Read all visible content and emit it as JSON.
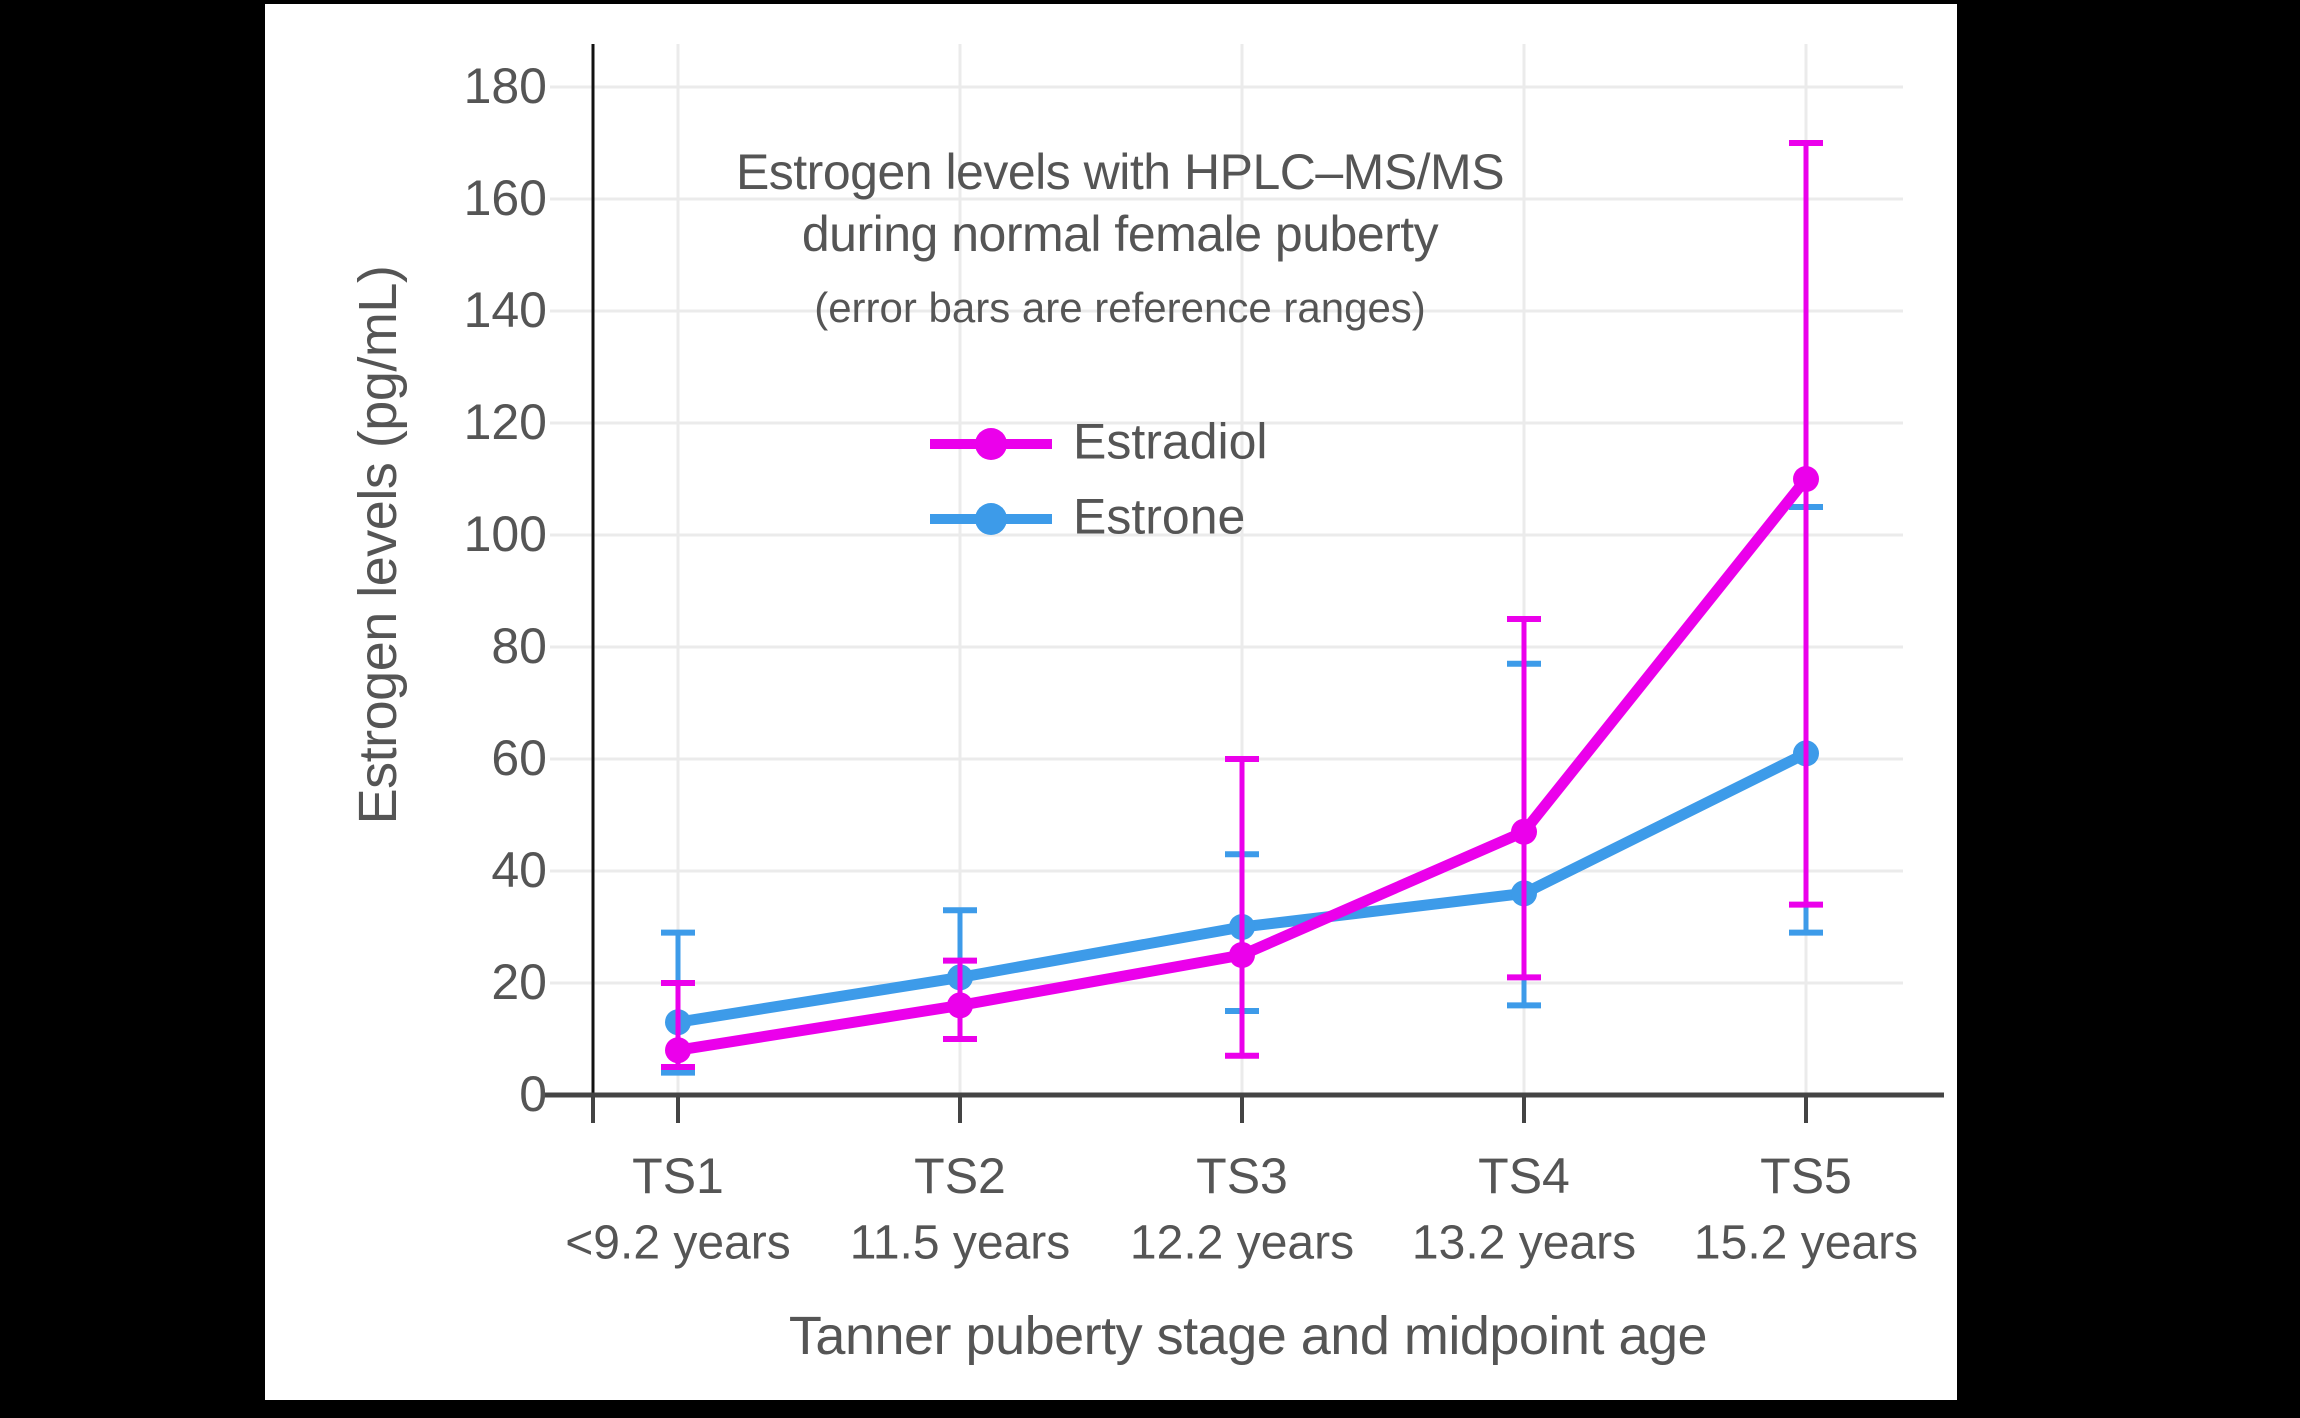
{
  "page": {
    "background": "#000000",
    "panel_background": "#ffffff"
  },
  "colors": {
    "grid": "#EBEBEB",
    "x_axis_line": "#444444",
    "y_axis_line": "#111111",
    "tick": "#444444",
    "text": "#555555",
    "estradiol": "#EB00EB",
    "estrone": "#3D9BE9"
  },
  "chart_data": {
    "type": "line",
    "title_line1": "Estrogen levels with HPLC–MS/MS",
    "title_line2": "during normal female puberty",
    "subtitle": "(error bars are reference ranges)",
    "xlabel": "Tanner puberty stage and midpoint age",
    "ylabel": "Estrogen levels (pg/mL)",
    "categories": [
      "TS1",
      "TS2",
      "TS3",
      "TS4",
      "TS5"
    ],
    "category_ages": [
      "<9.2 years",
      "11.5 years",
      "12.2 years",
      "13.2 years",
      "15.2 years"
    ],
    "y_ticks": [
      0,
      20,
      40,
      60,
      80,
      100,
      120,
      140,
      160,
      180
    ],
    "ylim": [
      0,
      188
    ],
    "grid": true,
    "legend_position": "upper-center",
    "error_bars_meaning": "reference ranges",
    "series": [
      {
        "name": "Estradiol",
        "color": "#EB00EB",
        "values": [
          8,
          16,
          25,
          47,
          110
        ],
        "range_low": [
          5,
          10,
          7,
          21,
          34
        ],
        "range_high": [
          20,
          24,
          60,
          85,
          170
        ]
      },
      {
        "name": "Estrone",
        "color": "#3D9BE9",
        "values": [
          13,
          21,
          30,
          36,
          61
        ],
        "range_low": [
          4,
          10,
          15,
          16,
          29
        ],
        "range_high": [
          29,
          33,
          43,
          77,
          105
        ]
      }
    ]
  }
}
